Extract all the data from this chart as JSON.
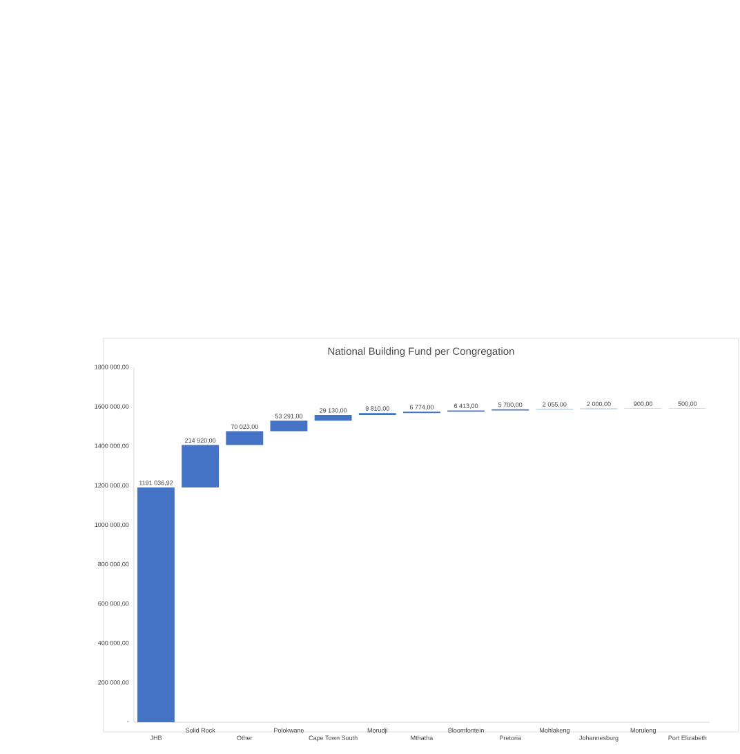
{
  "chart_data": {
    "type": "bar",
    "title": "National Building Fund per Congregation",
    "categories": [
      "JHB",
      "Solid Rock",
      "Other",
      "Polokwane",
      "Cape Town South",
      "Morudji",
      "Mthatha",
      "Bloomfontein",
      "Pretoria",
      "Mohlakeng",
      "Johannesburg",
      "Moruleng",
      "Port Elizabeth"
    ],
    "values": [
      1191036.92,
      214920,
      70023,
      53291,
      29130,
      9810,
      6774,
      6413,
      5700,
      2055,
      2000,
      900,
      500
    ],
    "base": [
      0,
      1191036.92,
      1405956.92,
      1475979.92,
      1529270.92,
      1558400.92,
      1568210.92,
      1574984.92,
      1581397.92,
      1587097.92,
      1589152.92,
      1591152.92,
      1592052.92
    ],
    "value_labels": [
      "1191 036,92",
      "214 920,00",
      "70 023,00",
      "53 291,00",
      "29 130,00",
      "9 810,00",
      "6 774,00",
      "6 413,00",
      "5 700,00",
      "2 055,00",
      "2 000,00",
      "900,00",
      "500,00"
    ],
    "color": "#4472c4",
    "ylim": [
      0,
      1800000
    ],
    "yticks": [
      {
        "value": 0,
        "label": "-"
      },
      {
        "value": 200000,
        "label": "200 000,00"
      },
      {
        "value": 400000,
        "label": "400 000,00"
      },
      {
        "value": 600000,
        "label": "600 000,00"
      },
      {
        "value": 800000,
        "label": "800 000,00"
      },
      {
        "value": 1000000,
        "label": "1000 000,00"
      },
      {
        "value": 1200000,
        "label": "1200 000,00"
      },
      {
        "value": 1400000,
        "label": "1400 000,00"
      },
      {
        "value": 1600000,
        "label": "1600 000,00"
      },
      {
        "value": 1800000,
        "label": "1800 000,00"
      }
    ]
  }
}
